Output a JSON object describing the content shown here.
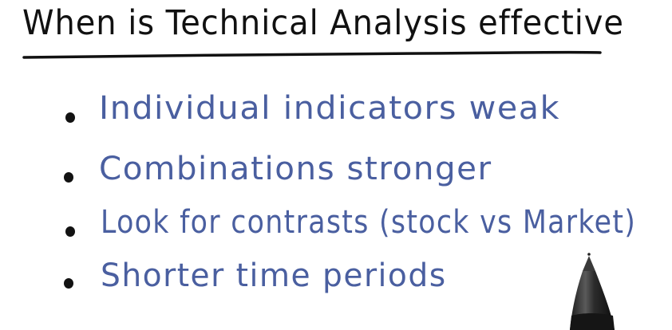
{
  "title": "When is Technical Analysis effective",
  "bullets": [
    {
      "text": "Individual indicators weak"
    },
    {
      "text": "Combinations stronger"
    },
    {
      "text": "Look for contrasts (stock vs Market)"
    },
    {
      "text": "Shorter time periods"
    }
  ],
  "colors": {
    "title_ink": "#111111",
    "bullet_ink": "#4a5fa0",
    "dot_ink": "#121212",
    "background": "#ffffff"
  },
  "icons": {
    "pen": "stylus-pen-icon"
  }
}
